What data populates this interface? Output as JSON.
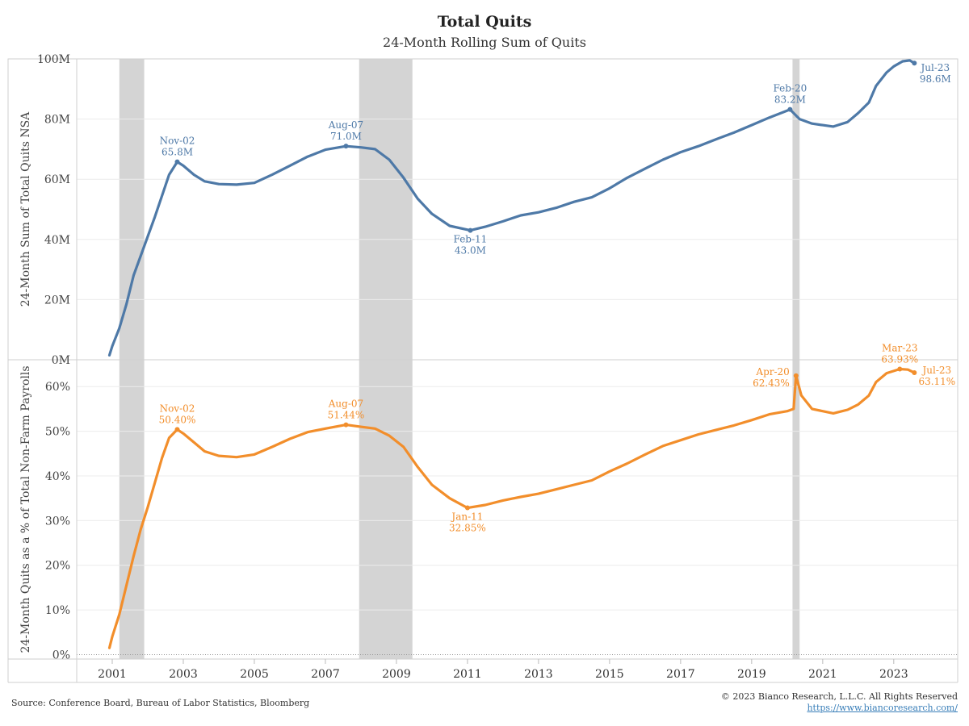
{
  "title": "Total Quits",
  "subtitle": "24-Month Rolling Sum of Quits",
  "footer": {
    "source": "Source: Conference Board, Bureau of Labor Statistics, Bloomberg",
    "copyright": "© 2023 Bianco Research, L.L.C. All Rights Reserved",
    "url": "https://www.biancoresearch.com/"
  },
  "colors": {
    "top_series": "#4e79a7",
    "bottom_series": "#f28e2b",
    "recession": "#d4d4d4"
  },
  "chart_data": [
    {
      "type": "line",
      "ylabel": "24-Month Sum of Total Quits NSA",
      "ylim": [
        0,
        100
      ],
      "yunit": "M",
      "yticks": [
        "0M",
        "20M",
        "40M",
        "60M",
        "80M",
        "100M"
      ],
      "grid": true,
      "recessions": [
        [
          2001.2,
          2001.9
        ],
        [
          2007.95,
          2009.45
        ],
        [
          2020.15,
          2020.35
        ]
      ],
      "series": [
        {
          "name": "",
          "points": [
            [
              2000.92,
              1.5
            ],
            [
              2001.0,
              4.5
            ],
            [
              2001.2,
              10.5
            ],
            [
              2001.4,
              18.5
            ],
            [
              2001.6,
              28
            ],
            [
              2001.8,
              34.5
            ],
            [
              2002.0,
              41
            ],
            [
              2002.2,
              47.5
            ],
            [
              2002.4,
              54.5
            ],
            [
              2002.6,
              61.5
            ],
            [
              2002.83,
              65.8
            ],
            [
              2003.0,
              64.5
            ],
            [
              2003.3,
              61.5
            ],
            [
              2003.6,
              59.3
            ],
            [
              2004.0,
              58.4
            ],
            [
              2004.5,
              58.2
            ],
            [
              2005.0,
              58.8
            ],
            [
              2005.5,
              61.5
            ],
            [
              2006.0,
              64.5
            ],
            [
              2006.5,
              67.5
            ],
            [
              2007.0,
              69.8
            ],
            [
              2007.58,
              71.0
            ],
            [
              2008.0,
              70.6
            ],
            [
              2008.4,
              70.0
            ],
            [
              2008.8,
              66.5
            ],
            [
              2009.2,
              60.5
            ],
            [
              2009.6,
              53.5
            ],
            [
              2010.0,
              48.5
            ],
            [
              2010.5,
              44.5
            ],
            [
              2011.08,
              43.0
            ],
            [
              2011.5,
              44.2
            ],
            [
              2012.0,
              46.0
            ],
            [
              2012.5,
              48.0
            ],
            [
              2013.0,
              49.0
            ],
            [
              2013.5,
              50.5
            ],
            [
              2014.0,
              52.5
            ],
            [
              2014.5,
              54.0
            ],
            [
              2015.0,
              57.0
            ],
            [
              2015.5,
              60.5
            ],
            [
              2016.0,
              63.5
            ],
            [
              2016.5,
              66.5
            ],
            [
              2017.0,
              69.0
            ],
            [
              2017.5,
              71.0
            ],
            [
              2018.0,
              73.3
            ],
            [
              2018.5,
              75.5
            ],
            [
              2019.0,
              78.0
            ],
            [
              2019.5,
              80.5
            ],
            [
              2020.08,
              83.2
            ],
            [
              2020.35,
              80.0
            ],
            [
              2020.7,
              78.5
            ],
            [
              2021.0,
              78.0
            ],
            [
              2021.3,
              77.5
            ],
            [
              2021.7,
              79.0
            ],
            [
              2022.0,
              82.0
            ],
            [
              2022.3,
              85.5
            ],
            [
              2022.5,
              91.0
            ],
            [
              2022.8,
              95.5
            ],
            [
              2023.0,
              97.5
            ],
            [
              2023.25,
              99.2
            ],
            [
              2023.45,
              99.5
            ],
            [
              2023.58,
              98.6
            ]
          ]
        }
      ],
      "annotations": [
        {
          "x": 2002.83,
          "y": 65.8,
          "date": "Nov-02",
          "value": "65.8M",
          "pos": "above"
        },
        {
          "x": 2007.58,
          "y": 71.0,
          "date": "Aug-07",
          "value": "71.0M",
          "pos": "above"
        },
        {
          "x": 2011.08,
          "y": 43.0,
          "date": "Feb-11",
          "value": "43.0M",
          "pos": "below"
        },
        {
          "x": 2020.08,
          "y": 83.2,
          "date": "Feb-20",
          "value": "83.2M",
          "pos": "above"
        },
        {
          "x": 2023.58,
          "y": 98.6,
          "date": "Jul-23",
          "value": "98.6M",
          "pos": "right"
        }
      ]
    },
    {
      "type": "line",
      "ylabel": "24-Month Quits as a % of Total Non-Farm Payrolls",
      "ylim": [
        -1,
        66
      ],
      "yunit": "%",
      "yticks": [
        "0%",
        "10%",
        "20%",
        "30%",
        "40%",
        "50%",
        "60%"
      ],
      "grid": true,
      "xticks": [
        "2001",
        "2003",
        "2005",
        "2007",
        "2009",
        "2011",
        "2013",
        "2015",
        "2017",
        "2019",
        "2021",
        "2023"
      ],
      "recessions": [
        [
          2001.2,
          2001.9
        ],
        [
          2007.95,
          2009.45
        ],
        [
          2020.15,
          2020.35
        ]
      ],
      "series": [
        {
          "name": "",
          "points": [
            [
              2000.92,
              1.5
            ],
            [
              2001.0,
              4.0
            ],
            [
              2001.2,
              9.0
            ],
            [
              2001.4,
              15.5
            ],
            [
              2001.6,
              22.0
            ],
            [
              2001.8,
              28.0
            ],
            [
              2002.0,
              33.0
            ],
            [
              2002.2,
              38.5
            ],
            [
              2002.4,
              44.0
            ],
            [
              2002.6,
              48.5
            ],
            [
              2002.83,
              50.4
            ],
            [
              2003.0,
              49.5
            ],
            [
              2003.3,
              47.5
            ],
            [
              2003.6,
              45.5
            ],
            [
              2004.0,
              44.5
            ],
            [
              2004.5,
              44.2
            ],
            [
              2005.0,
              44.8
            ],
            [
              2005.5,
              46.5
            ],
            [
              2006.0,
              48.3
            ],
            [
              2006.5,
              49.8
            ],
            [
              2007.0,
              50.6
            ],
            [
              2007.58,
              51.44
            ],
            [
              2008.0,
              51.0
            ],
            [
              2008.4,
              50.6
            ],
            [
              2008.8,
              49.0
            ],
            [
              2009.2,
              46.5
            ],
            [
              2009.6,
              42.0
            ],
            [
              2010.0,
              38.0
            ],
            [
              2010.5,
              35.0
            ],
            [
              2011.0,
              32.85
            ],
            [
              2011.5,
              33.5
            ],
            [
              2012.0,
              34.5
            ],
            [
              2012.5,
              35.3
            ],
            [
              2013.0,
              36.0
            ],
            [
              2013.5,
              37.0
            ],
            [
              2014.0,
              38.0
            ],
            [
              2014.5,
              39.0
            ],
            [
              2015.0,
              41.0
            ],
            [
              2015.5,
              42.8
            ],
            [
              2016.0,
              44.8
            ],
            [
              2016.5,
              46.7
            ],
            [
              2017.0,
              48.0
            ],
            [
              2017.5,
              49.3
            ],
            [
              2018.0,
              50.3
            ],
            [
              2018.5,
              51.3
            ],
            [
              2019.0,
              52.5
            ],
            [
              2019.5,
              53.8
            ],
            [
              2020.0,
              54.5
            ],
            [
              2020.18,
              55.0
            ],
            [
              2020.25,
              62.43
            ],
            [
              2020.4,
              58.0
            ],
            [
              2020.7,
              55.0
            ],
            [
              2021.0,
              54.5
            ],
            [
              2021.3,
              54.0
            ],
            [
              2021.7,
              54.8
            ],
            [
              2022.0,
              56.0
            ],
            [
              2022.3,
              58.0
            ],
            [
              2022.5,
              61.0
            ],
            [
              2022.8,
              63.0
            ],
            [
              2023.17,
              63.93
            ],
            [
              2023.4,
              63.8
            ],
            [
              2023.58,
              63.11
            ]
          ]
        }
      ],
      "annotations": [
        {
          "x": 2002.83,
          "y": 50.4,
          "date": "Nov-02",
          "value": "50.40%",
          "pos": "above"
        },
        {
          "x": 2007.58,
          "y": 51.44,
          "date": "Aug-07",
          "value": "51.44%",
          "pos": "above"
        },
        {
          "x": 2011.0,
          "y": 32.85,
          "date": "Jan-11",
          "value": "32.85%",
          "pos": "below"
        },
        {
          "x": 2020.25,
          "y": 62.43,
          "date": "Apr-20",
          "value": "62.43%",
          "pos": "left"
        },
        {
          "x": 2023.17,
          "y": 63.93,
          "date": "Mar-23",
          "value": "63.93%",
          "pos": "above"
        },
        {
          "x": 2023.58,
          "y": 63.11,
          "date": "Jul-23",
          "value": "63.11%",
          "pos": "right"
        }
      ]
    }
  ]
}
